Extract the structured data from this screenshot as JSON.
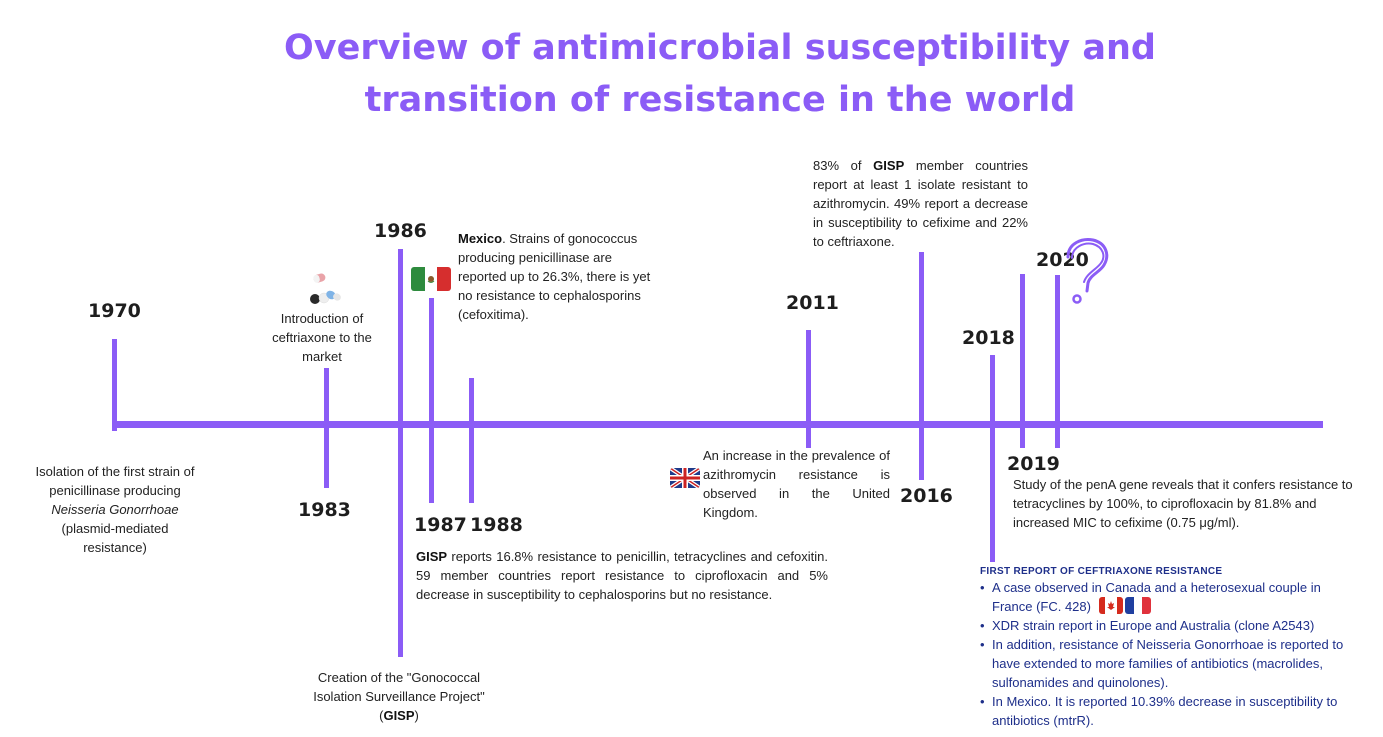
{
  "title": {
    "line1": "Overview of antimicrobial susceptibility and",
    "line2": "transition of resistance in the world"
  },
  "colors": {
    "accent": "#8b5cf6",
    "text": "#222222",
    "report_blue": "#1e2f8a"
  },
  "years": {
    "y1970": "1970",
    "y1983": "1983",
    "y1986": "1986",
    "y1987": "1987",
    "y1988": "1988",
    "y2011": "2011",
    "y2016": "2016",
    "y2018": "2018",
    "y2019": "2019",
    "y2020": "2020"
  },
  "events": {
    "e1970": {
      "line1": "Isolation of the first strain of",
      "line2": "penicillinase producing",
      "organism": "Neisseria Gonorrhoae",
      "line4": "(plasmid-mediated",
      "line5": "resistance)"
    },
    "e1983": {
      "text": "Introduction of ceftriaxone to the market"
    },
    "e1986": {
      "text_before": "Creation of the \"Gonococcal Isolation Surveillance Project\" (",
      "bold": "GISP",
      "text_after": ")"
    },
    "e1987": {
      "bold": "Mexico",
      "text": ". Strains of gonococcus producing penicillinase are reported up to 26.3%, there is yet no resistance to cephalosporins (cefoxitima)."
    },
    "e1988": {
      "bold": "GISP",
      "text": " reports 16.8% resistance to penicillin, tetracyclines and cefoxitin. 59 member countries report resistance to ciprofloxacin and 5% decrease in susceptibility to cephalosporins but no resistance."
    },
    "e2011": {
      "text": "An increase in the prevalence of azithromycin resistance is observed in the United Kingdom."
    },
    "e2016": {
      "text_before": "83% of ",
      "bold": "GISP",
      "text_after": " member countries report at least 1 isolate resistant to azithromycin. 49% report a decrease in susceptibility to cefixime and 22% to ceftriaxone."
    },
    "e2019": {
      "text": "Study of the penA gene reveals that it confers resistance to tetracyclines by 100%, to ciprofloxacin by 81.8% and increased MIC to cefixime (0.75 μg/ml)."
    },
    "e2018": {
      "heading": "FIRST REPORT OF CEFTRIAXONE RESISTANCE",
      "items": [
        "A case observed in Canada and a heterosexual couple in France (FC. 428)",
        "XDR strain report in Europe and Australia (clone A2543)",
        "In addition, resistance of Neisseria Gonorrhoae is reported to have extended to more families of antibiotics (macrolides, sulfonamides and quinolones).",
        "In Mexico. It is reported 10.39% decrease in susceptibility to antibiotics (mtrR)."
      ]
    }
  },
  "icons": {
    "pills": "pills-icon",
    "mexico": "mexico-flag-icon",
    "uk": "uk-flag-icon",
    "canada": "canada-flag-icon",
    "france": "france-flag-icon",
    "question": "question-mark-icon"
  }
}
